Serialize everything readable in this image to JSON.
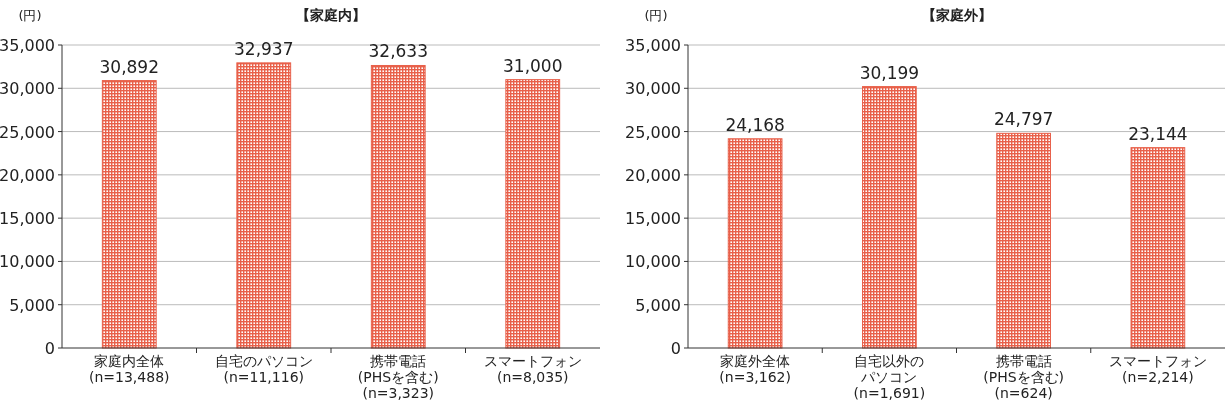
{
  "chart_data": [
    {
      "type": "bar",
      "title": "【家庭内】",
      "ylabel": "(円)",
      "categories": [
        "家庭内全体\n(n=13,488)",
        "自宅のパソコン\n(n=11,116)",
        "携帯電話\n(PHSを含む)\n(n=3,323)",
        "スマートフォン\n(n=8,035)"
      ],
      "values": [
        30892,
        32937,
        32633,
        31000
      ],
      "value_labels": [
        "30,892",
        "32,937",
        "32,633",
        "31,000"
      ],
      "color": "#e8604a",
      "ylim": [
        0,
        35000
      ],
      "yticks": [
        {
          "value": 0,
          "label": "0"
        },
        {
          "value": 5000,
          "label": "5,000"
        },
        {
          "value": 10000,
          "label": "10,000"
        },
        {
          "value": 15000,
          "label": "15,000"
        },
        {
          "value": 20000,
          "label": "20,000"
        },
        {
          "value": 25000,
          "label": "25,000"
        },
        {
          "value": 30000,
          "label": "30,000"
        },
        {
          "value": 35000,
          "label": "35,000"
        }
      ],
      "grid": "y"
    },
    {
      "type": "bar",
      "title": "【家庭外】",
      "ylabel": "(円)",
      "categories": [
        "家庭外全体\n(n=3,162)",
        "自宅以外のパソコン\n(n=1,691)",
        "携帯電話\n(PHSを含む)\n(n=624)",
        "スマートフォン\n(n=2,214)"
      ],
      "values": [
        24168,
        30199,
        24797,
        23144
      ],
      "value_labels": [
        "24,168",
        "30,199",
        "24,797",
        "23,144"
      ],
      "color": "#e8604a",
      "ylim": [
        0,
        35000
      ],
      "yticks": [
        {
          "value": 0,
          "label": "0"
        },
        {
          "value": 5000,
          "label": "5,000"
        },
        {
          "value": 10000,
          "label": "10,000"
        },
        {
          "value": 15000,
          "label": "15,000"
        },
        {
          "value": 20000,
          "label": "20,000"
        },
        {
          "value": 25000,
          "label": "25,000"
        },
        {
          "value": 30000,
          "label": "30,000"
        },
        {
          "value": 35000,
          "label": "35,000"
        }
      ],
      "grid": "y"
    }
  ]
}
